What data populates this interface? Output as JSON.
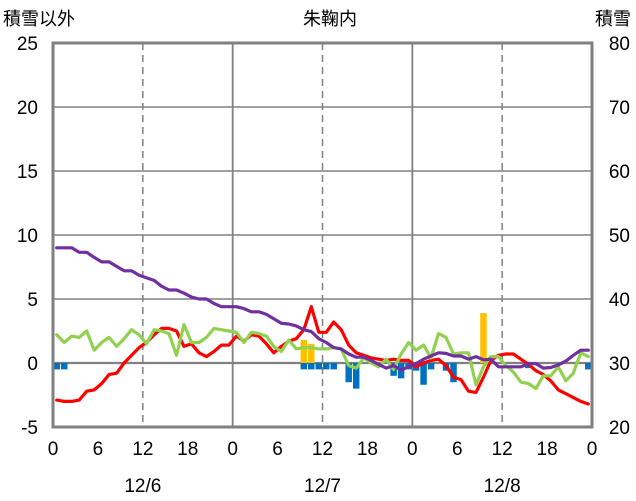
{
  "chart_data": {
    "type": "line",
    "title": "朱鞠内",
    "ylabel_left": "積雪以外",
    "ylabel_right": "積雪",
    "ylim_left": [
      -5,
      25
    ],
    "ylim_right": [
      20,
      80
    ],
    "yticks_left": [
      -5,
      0,
      5,
      10,
      15,
      20,
      25
    ],
    "yticks_right": [
      20,
      30,
      40,
      50,
      60,
      70,
      80
    ],
    "xlim_hours": [
      0,
      72
    ],
    "xticks": [
      {
        "h": 0,
        "label": "0"
      },
      {
        "h": 6,
        "label": "6"
      },
      {
        "h": 12,
        "label": "12"
      },
      {
        "h": 18,
        "label": "18"
      },
      {
        "h": 24,
        "label": "0"
      },
      {
        "h": 30,
        "label": "6"
      },
      {
        "h": 36,
        "label": "12"
      },
      {
        "h": 42,
        "label": "18"
      },
      {
        "h": 48,
        "label": "0"
      },
      {
        "h": 54,
        "label": "6"
      },
      {
        "h": 60,
        "label": "12"
      },
      {
        "h": 66,
        "label": "18"
      },
      {
        "h": 72,
        "label": "0"
      }
    ],
    "date_labels": [
      {
        "h": 12,
        "label": "12/6"
      },
      {
        "h": 36,
        "label": "12/7"
      },
      {
        "h": 60,
        "label": "12/8"
      }
    ],
    "grid": "dashed at hour 12 and 36 and 60; solid at hour 24 and 48; solid horizontal lines every 5",
    "colors": {
      "red": "#ff0000",
      "green": "#92d050",
      "purple": "#7030a0",
      "blue": "#0070c0",
      "yellow": "#ffc000",
      "frame": "#808080",
      "grid": "#808080"
    },
    "series": [
      {
        "axis": "left",
        "color": "red",
        "points": [
          [
            0,
            -2.9
          ],
          [
            1,
            -3
          ],
          [
            2,
            -3
          ],
          [
            3,
            -2.9
          ],
          [
            4,
            -2.2
          ],
          [
            5,
            -2.1
          ],
          [
            6,
            -1.6
          ],
          [
            7,
            -0.9
          ],
          [
            8,
            -0.8
          ],
          [
            9,
            0
          ],
          [
            10,
            0.6
          ],
          [
            11,
            1.2
          ],
          [
            12,
            1.6
          ],
          [
            13,
            2.2
          ],
          [
            14,
            2.7
          ],
          [
            15,
            2.7
          ],
          [
            16,
            2.5
          ],
          [
            17,
            1.3
          ],
          [
            18,
            1.5
          ],
          [
            19,
            0.8
          ],
          [
            20,
            0.5
          ],
          [
            21,
            0.9
          ],
          [
            22,
            1.4
          ],
          [
            23,
            1.4
          ],
          [
            24,
            2.1
          ],
          [
            25,
            1.7
          ],
          [
            26,
            2.2
          ],
          [
            27,
            2.1
          ],
          [
            28,
            1.5
          ],
          [
            29,
            0.8
          ],
          [
            30,
            1.3
          ],
          [
            31,
            1.7
          ],
          [
            32,
            1.9
          ],
          [
            33,
            2.6
          ],
          [
            34,
            4.4
          ],
          [
            35,
            2.4
          ],
          [
            36,
            2.4
          ],
          [
            37,
            3.2
          ],
          [
            38,
            2.6
          ],
          [
            39,
            1.4
          ],
          [
            40,
            0.8
          ],
          [
            41,
            0.6
          ],
          [
            42,
            0.4
          ],
          [
            43,
            0.3
          ],
          [
            44,
            0.2
          ],
          [
            45,
            0.3
          ],
          [
            46,
            0.2
          ],
          [
            47,
            0.2
          ],
          [
            48,
            -0.3
          ],
          [
            49,
            0
          ],
          [
            50,
            0.2
          ],
          [
            51,
            0.3
          ],
          [
            52,
            -0.2
          ],
          [
            53,
            -1.1
          ],
          [
            54,
            -1.3
          ],
          [
            55,
            -2.2
          ],
          [
            56,
            -2.3
          ],
          [
            57,
            -1.1
          ],
          [
            58,
            0.2
          ],
          [
            59,
            0.6
          ],
          [
            60,
            0.7
          ],
          [
            61,
            0.7
          ],
          [
            62,
            0.3
          ],
          [
            63,
            -0.1
          ],
          [
            64,
            -0.6
          ],
          [
            65,
            -0.9
          ],
          [
            66,
            -1.4
          ],
          [
            67,
            -2.1
          ],
          [
            68,
            -2.4
          ],
          [
            69,
            -2.7
          ],
          [
            70,
            -3
          ],
          [
            71,
            -3.2
          ]
        ]
      },
      {
        "axis": "left",
        "color": "green",
        "points": [
          [
            0,
            2.2
          ],
          [
            1,
            1.6
          ],
          [
            2,
            2.1
          ],
          [
            3,
            2
          ],
          [
            4,
            2.5
          ],
          [
            5,
            1
          ],
          [
            6,
            1.6
          ],
          [
            7,
            2
          ],
          [
            8,
            1.3
          ],
          [
            9,
            1.9
          ],
          [
            10,
            2.6
          ],
          [
            11,
            2.2
          ],
          [
            12,
            1.5
          ],
          [
            13,
            2.6
          ],
          [
            14,
            2.5
          ],
          [
            15,
            2.3
          ],
          [
            16,
            0.6
          ],
          [
            17,
            3
          ],
          [
            18,
            1.6
          ],
          [
            19,
            1.6
          ],
          [
            20,
            2
          ],
          [
            21,
            2.7
          ],
          [
            22,
            2.6
          ],
          [
            23,
            2.5
          ],
          [
            24,
            2.4
          ],
          [
            25,
            1.6
          ],
          [
            26,
            2.4
          ],
          [
            27,
            2.3
          ],
          [
            28,
            2.1
          ],
          [
            29,
            1.3
          ],
          [
            30,
            0.9
          ],
          [
            31,
            1.8
          ],
          [
            32,
            1.1
          ],
          [
            33,
            1.2
          ],
          [
            34,
            1.2
          ],
          [
            35,
            1.1
          ],
          [
            36,
            1.1
          ],
          [
            37,
            1.2
          ],
          [
            38,
            1.1
          ],
          [
            39,
            -0.2
          ],
          [
            40,
            -0.4
          ],
          [
            41,
            0.4
          ],
          [
            42,
            0
          ],
          [
            43,
            -0.3
          ],
          [
            44,
            0.3
          ],
          [
            45,
            -0.5
          ],
          [
            46,
            0.7
          ],
          [
            47,
            1.6
          ],
          [
            48,
            1
          ],
          [
            49,
            1.4
          ],
          [
            50,
            0.4
          ],
          [
            51,
            2.3
          ],
          [
            52,
            2
          ],
          [
            53,
            0.7
          ],
          [
            54,
            0.8
          ],
          [
            55,
            0.8
          ],
          [
            56,
            -1.7
          ],
          [
            57,
            -0.3
          ],
          [
            58,
            0.5
          ],
          [
            59,
            0.5
          ],
          [
            60,
            -0.2
          ],
          [
            61,
            -0.7
          ],
          [
            62,
            -1.5
          ],
          [
            63,
            -1.6
          ],
          [
            64,
            -2
          ],
          [
            65,
            -1
          ],
          [
            66,
            -1
          ],
          [
            67,
            -0.3
          ],
          [
            68,
            -1.4
          ],
          [
            69,
            -0.8
          ],
          [
            70,
            0.8
          ],
          [
            71,
            0.5
          ]
        ]
      },
      {
        "axis": "right",
        "color": "purple",
        "points": [
          [
            0,
            48
          ],
          [
            1,
            48
          ],
          [
            2,
            48
          ],
          [
            3,
            47.3
          ],
          [
            4,
            47.3
          ],
          [
            5,
            46.5
          ],
          [
            6,
            45.8
          ],
          [
            7,
            45.8
          ],
          [
            8,
            45.1
          ],
          [
            9,
            44.4
          ],
          [
            10,
            44.4
          ],
          [
            11,
            43.7
          ],
          [
            12,
            43.3
          ],
          [
            13,
            42.9
          ],
          [
            14,
            42
          ],
          [
            15,
            41.4
          ],
          [
            16,
            41.4
          ],
          [
            17,
            40.9
          ],
          [
            18,
            40.3
          ],
          [
            19,
            40
          ],
          [
            20,
            40
          ],
          [
            21,
            39.3
          ],
          [
            22,
            38.8
          ],
          [
            23,
            38.8
          ],
          [
            24,
            38.8
          ],
          [
            25,
            38.5
          ],
          [
            26,
            38
          ],
          [
            27,
            38
          ],
          [
            28,
            37.6
          ],
          [
            29,
            36.9
          ],
          [
            30,
            36.2
          ],
          [
            31,
            36.1
          ],
          [
            32,
            35.8
          ],
          [
            33,
            35.2
          ],
          [
            34,
            34.9
          ],
          [
            35,
            33.8
          ],
          [
            36,
            33.2
          ],
          [
            37,
            32.4
          ],
          [
            38,
            32.2
          ],
          [
            39,
            31.4
          ],
          [
            40,
            30.9
          ],
          [
            41,
            30.9
          ],
          [
            42,
            30.4
          ],
          [
            43,
            29.8
          ],
          [
            44,
            29.2
          ],
          [
            45,
            29.6
          ],
          [
            46,
            28.9
          ],
          [
            47,
            29.4
          ],
          [
            48,
            29.9
          ],
          [
            49,
            30.6
          ],
          [
            50,
            31.1
          ],
          [
            51,
            31.6
          ],
          [
            52,
            31.5
          ],
          [
            53,
            31.1
          ],
          [
            54,
            31.1
          ],
          [
            55,
            30.6
          ],
          [
            56,
            31
          ],
          [
            57,
            30.5
          ],
          [
            58,
            30.6
          ],
          [
            59,
            29.4
          ],
          [
            60,
            29.4
          ],
          [
            61,
            29.4
          ],
          [
            62,
            29.4
          ],
          [
            63,
            29.9
          ],
          [
            64,
            29.9
          ],
          [
            65,
            29.2
          ],
          [
            66,
            29.3
          ],
          [
            67,
            29.7
          ],
          [
            68,
            30.3
          ],
          [
            69,
            31.2
          ],
          [
            70,
            32
          ],
          [
            71,
            32
          ]
        ]
      }
    ],
    "bars": [
      {
        "axis": "left",
        "color": "blue",
        "items": [
          [
            0,
            -0.5
          ],
          [
            1,
            -0.5
          ],
          [
            33,
            -0.5
          ],
          [
            34,
            -0.5
          ],
          [
            35,
            -0.5
          ],
          [
            36,
            -0.5
          ],
          [
            37,
            -0.5
          ],
          [
            39,
            -1.5
          ],
          [
            40,
            -2
          ],
          [
            45,
            -1
          ],
          [
            46,
            -1.2
          ],
          [
            47,
            -0.5
          ],
          [
            48,
            -0.6
          ],
          [
            49,
            -1.7
          ],
          [
            50,
            -0.5
          ],
          [
            52,
            -0.6
          ],
          [
            53,
            -1.5
          ],
          [
            63,
            -0.4
          ],
          [
            71,
            -0.5
          ]
        ]
      },
      {
        "axis": "left",
        "color": "yellow",
        "items": [
          [
            33,
            1.8
          ],
          [
            34,
            1.5
          ],
          [
            57,
            3.9
          ]
        ]
      }
    ]
  }
}
